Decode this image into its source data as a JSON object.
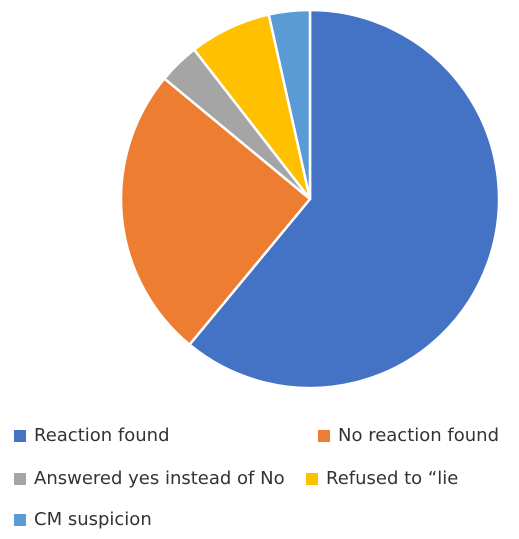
{
  "chart_data": {
    "type": "pie",
    "title": "",
    "categories": [
      "Reaction found",
      "No reaction found",
      "Answered yes instead of No",
      "Refused to “lie",
      "CM suspicion"
    ],
    "values": [
      61,
      25,
      3.5,
      7,
      3.5
    ],
    "unit": "",
    "colors": [
      "#4472c4",
      "#ed7d31",
      "#a5a5a5",
      "#ffc000",
      "#5b9bd5"
    ],
    "start_angle_deg": 0,
    "direction": "clockwise",
    "legend_position": "bottom",
    "slice_border_color": "#ffffff"
  }
}
